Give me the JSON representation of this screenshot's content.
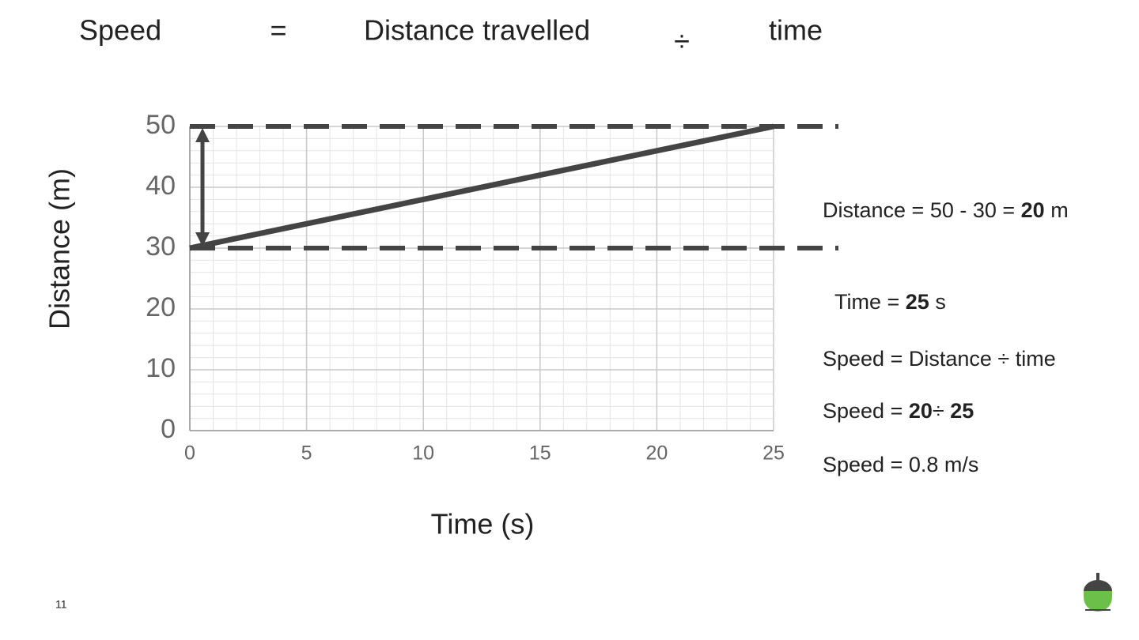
{
  "header": {
    "parts": [
      "Speed",
      "=",
      "Distance travelled",
      "÷",
      "time"
    ]
  },
  "chart_data": {
    "type": "line",
    "x": [
      0,
      25
    ],
    "values": [
      30,
      50
    ],
    "color": "#444444",
    "xlabel": "Time (s)",
    "ylabel": "Distance (m)",
    "xlim": [
      0,
      25
    ],
    "ylim": [
      0,
      50
    ],
    "xticks": [
      0,
      5,
      10,
      15,
      20,
      25
    ],
    "yticks": [
      0,
      10,
      20,
      30,
      40,
      50
    ],
    "grid": true,
    "hlines": [
      50,
      30
    ]
  },
  "notes": [
    [
      {
        "text": "Distance = 50 - 30 = ",
        "bold": false
      },
      {
        "text": "20",
        "bold": true
      },
      {
        "text": " m",
        "bold": false
      }
    ],
    [
      {
        "text": "Time = ",
        "bold": false
      },
      {
        "text": "25",
        "bold": true
      },
      {
        "text": " s",
        "bold": false
      }
    ],
    [
      {
        "text": "Speed = Distance ÷ time",
        "bold": false
      }
    ],
    [
      {
        "text": "Speed = ",
        "bold": false
      },
      {
        "text": "20",
        "bold": true
      },
      {
        "text": "÷ ",
        "bold": false
      },
      {
        "text": "25",
        "bold": true
      }
    ],
    [
      {
        "text": "Speed = 0.8 m/s",
        "bold": false
      }
    ]
  ],
  "page_number": "11"
}
